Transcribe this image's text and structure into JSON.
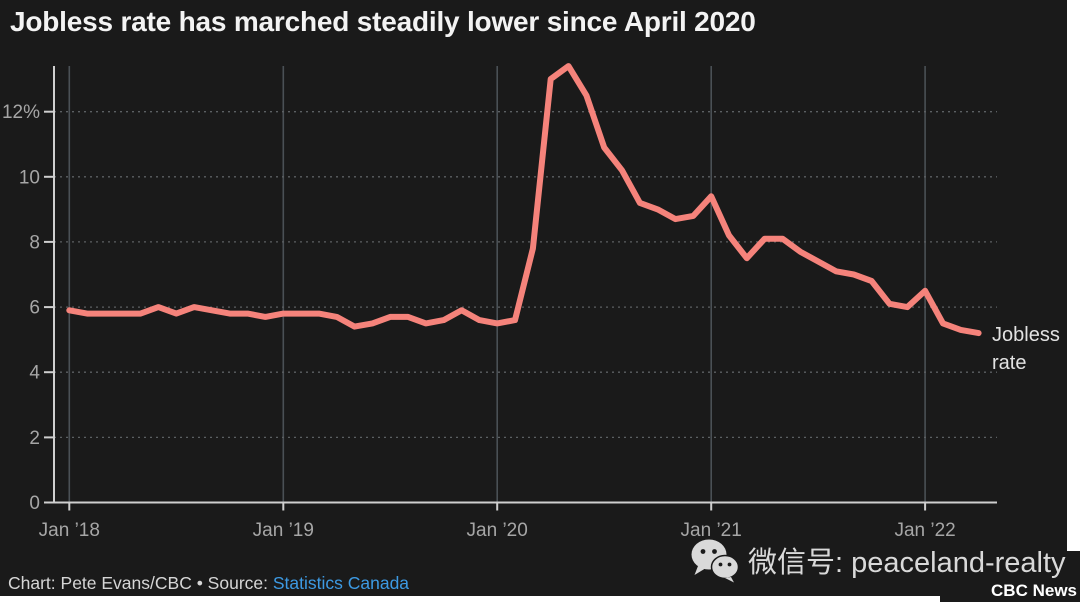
{
  "page": {
    "title": "Jobless rate has marched steadily lower since April 2020"
  },
  "chart_data": {
    "type": "line",
    "title": "Jobless rate has marched steadily lower since April 2020",
    "x_unit": "month",
    "x_range": [
      "Jan 2018",
      "Apr 2022"
    ],
    "x_tick_labels": [
      "Jan ’18",
      "Jan ’19",
      "Jan ’20",
      "Jan ’21",
      "Jan ’22"
    ],
    "x_tick_month_indices": [
      0,
      12,
      24,
      36,
      48
    ],
    "y_tick_values": [
      0,
      2,
      4,
      6,
      8,
      10,
      12
    ],
    "y_tick_labels": [
      "0",
      "2",
      "4",
      "6",
      "8",
      "10",
      "12%"
    ],
    "ylim": [
      0,
      13.4
    ],
    "grid": {
      "horizontal": "dashed",
      "vertical": "solid-at-year-ticks"
    },
    "legend_position": "end-of-line-label",
    "series": [
      {
        "name": "Jobless rate",
        "label_lines": [
          "Jobless",
          "rate"
        ],
        "color": "#f5837b",
        "values": [
          5.9,
          5.8,
          5.8,
          5.8,
          5.8,
          6.0,
          5.8,
          6.0,
          5.9,
          5.8,
          5.8,
          5.7,
          5.8,
          5.8,
          5.8,
          5.7,
          5.4,
          5.5,
          5.7,
          5.7,
          5.5,
          5.6,
          5.9,
          5.6,
          5.5,
          5.6,
          7.8,
          13.0,
          13.4,
          12.5,
          10.9,
          10.2,
          9.2,
          9.0,
          8.7,
          8.8,
          9.4,
          8.2,
          7.5,
          8.1,
          8.1,
          7.7,
          7.4,
          7.1,
          7.0,
          6.8,
          6.1,
          6.0,
          6.5,
          5.5,
          5.3,
          5.2
        ]
      }
    ]
  },
  "footer": {
    "credit": "Chart: Pete Evans/CBC • Source: ",
    "source_link": "Statistics Canada"
  },
  "watermark": {
    "icon": "wechat-icon",
    "label": "微信号: peaceland-realty"
  },
  "branding": {
    "label": "CBC News"
  },
  "colors": {
    "background": "#1a1a1a",
    "page": "#ffffff",
    "line": "#f5837b",
    "axis": "#cfcfcf",
    "grid_dashed": "#5c6063",
    "grid_vertical": "#4a5055",
    "tick_label": "#a6a6a6",
    "title": "#f3f3f3",
    "footer_text": "#d6d6d6",
    "link": "#3d9ae3",
    "watermark_text": "#d9d9d9",
    "cbc_text": "#ffffff"
  }
}
